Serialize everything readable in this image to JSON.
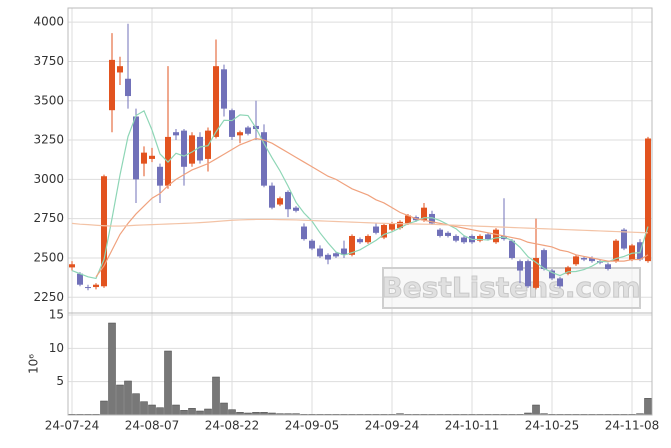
{
  "chart_data": {
    "type": "candlestick",
    "categories": [
      "24-07-24",
      null,
      null,
      null,
      null,
      null,
      null,
      null,
      null,
      null,
      "24-08-07",
      null,
      null,
      null,
      null,
      null,
      null,
      null,
      null,
      null,
      "24-08-22",
      null,
      null,
      null,
      null,
      null,
      null,
      null,
      null,
      null,
      "24-09-05",
      null,
      null,
      null,
      null,
      null,
      null,
      null,
      null,
      null,
      "24-09-24",
      null,
      null,
      null,
      null,
      null,
      null,
      null,
      null,
      null,
      "24-10-11",
      null,
      null,
      null,
      null,
      null,
      null,
      null,
      null,
      null,
      "24-10-25",
      null,
      null,
      null,
      null,
      null,
      null,
      null,
      null,
      null,
      "24-11-08",
      null,
      null
    ],
    "open": [
      2440,
      2400,
      2315,
      2315,
      2320,
      3440,
      3680,
      3640,
      3400,
      3100,
      3130,
      3080,
      2960,
      3300,
      3310,
      3100,
      3270,
      3130,
      3270,
      3700,
      3440,
      3280,
      3330,
      3340,
      3300,
      2960,
      2840,
      2920,
      2820,
      2700,
      2610,
      2560,
      2520,
      2530,
      2560,
      2520,
      2620,
      2600,
      2700,
      2630,
      2680,
      2690,
      2720,
      2760,
      2740,
      2780,
      2680,
      2660,
      2640,
      2630,
      2640,
      2610,
      2650,
      2600,
      2640,
      2610,
      2480,
      2480,
      2310,
      2550,
      2420,
      2370,
      2400,
      2460,
      2500,
      2500,
      2480,
      2460,
      2480,
      2680,
      2490,
      2600,
      2480
    ],
    "high": [
      2480,
      2410,
      2330,
      2340,
      3030,
      3930,
      3780,
      3990,
      3450,
      3210,
      3200,
      3100,
      3720,
      3320,
      3320,
      3300,
      3300,
      3330,
      3890,
      3730,
      3450,
      3310,
      3340,
      3500,
      3350,
      2980,
      2890,
      2930,
      2830,
      2720,
      2620,
      2580,
      2530,
      2540,
      2610,
      2650,
      2630,
      2650,
      2720,
      2720,
      2730,
      2740,
      2780,
      2770,
      2850,
      2800,
      2690,
      2670,
      2650,
      2640,
      2650,
      2650,
      2660,
      2690,
      2880,
      2620,
      2490,
      2490,
      2750,
      2560,
      2430,
      2380,
      2450,
      2520,
      2510,
      2510,
      2490,
      2470,
      2620,
      2690,
      2590,
      2620,
      3270
    ],
    "low": [
      2420,
      2320,
      2295,
      2300,
      2310,
      3300,
      3600,
      3450,
      2850,
      3020,
      3110,
      2850,
      2940,
      3250,
      2960,
      3080,
      3100,
      3050,
      3260,
      3400,
      3250,
      3230,
      3280,
      3250,
      2950,
      2810,
      2830,
      2760,
      2790,
      2610,
      2550,
      2500,
      2460,
      2500,
      2500,
      2510,
      2590,
      2590,
      2650,
      2620,
      2670,
      2680,
      2710,
      2730,
      2730,
      2710,
      2630,
      2630,
      2600,
      2590,
      2590,
      2600,
      2610,
      2590,
      2610,
      2490,
      2340,
      2310,
      2300,
      2420,
      2360,
      2310,
      2390,
      2450,
      2480,
      2470,
      2460,
      2420,
      2470,
      2550,
      2480,
      2480,
      2470
    ],
    "close": [
      2460,
      2330,
      2310,
      2330,
      3020,
      3760,
      3720,
      3530,
      3000,
      3170,
      3150,
      2960,
      3270,
      3280,
      3080,
      3280,
      3120,
      3310,
      3720,
      3450,
      3270,
      3300,
      3290,
      3320,
      2960,
      2820,
      2880,
      2810,
      2800,
      2620,
      2560,
      2510,
      2490,
      2510,
      2520,
      2640,
      2600,
      2640,
      2660,
      2710,
      2720,
      2730,
      2770,
      2740,
      2820,
      2720,
      2640,
      2640,
      2610,
      2600,
      2600,
      2640,
      2620,
      2680,
      2620,
      2500,
      2420,
      2320,
      2500,
      2430,
      2370,
      2320,
      2440,
      2510,
      2490,
      2480,
      2470,
      2430,
      2610,
      2560,
      2580,
      2490,
      3260
    ],
    "up_color": "#e2531f",
    "down_color": "#7171b9",
    "ylim": [
      2150,
      4090
    ],
    "yticks": [
      2250,
      2500,
      2750,
      3000,
      3250,
      3500,
      3750,
      4000
    ],
    "grid": true,
    "series": [
      {
        "color": "#8ed6b6",
        "values": [
          2420,
          2400,
          2380,
          2370,
          2490,
          2750,
          3028,
          3272,
          3406,
          3436,
          3314,
          3162,
          3110,
          3166,
          3148,
          3174,
          3206,
          3214,
          3302,
          3376,
          3374,
          3410,
          3406,
          3326,
          3228,
          3138,
          3054,
          2958,
          2854,
          2786,
          2734,
          2660,
          2596,
          2538,
          2518,
          2534,
          2552,
          2582,
          2612,
          2650,
          2666,
          2692,
          2718,
          2734,
          2756,
          2756,
          2738,
          2712,
          2686,
          2642,
          2618,
          2618,
          2614,
          2628,
          2632,
          2612,
          2568,
          2508,
          2472,
          2434,
          2408,
          2388,
          2412,
          2414,
          2426,
          2448,
          2478,
          2476,
          2496,
          2510,
          2530,
          2534,
          2700
        ]
      },
      {
        "color": "#f0a27e",
        "values": [
          null,
          null,
          null,
          2380,
          2450,
          2550,
          2650,
          2720,
          2780,
          2830,
          2880,
          2910,
          2960,
          3000,
          3030,
          3060,
          3080,
          3100,
          3130,
          3160,
          3190,
          3220,
          3240,
          3260,
          3250,
          3230,
          3200,
          3170,
          3140,
          3110,
          3080,
          3050,
          3020,
          3000,
          2970,
          2940,
          2920,
          2900,
          2870,
          2850,
          2820,
          2790,
          2770,
          2750,
          2740,
          2730,
          2720,
          2710,
          2700,
          2690,
          2680,
          2670,
          2660,
          2650,
          2640,
          2630,
          2620,
          2600,
          2590,
          2580,
          2570,
          2550,
          2540,
          2520,
          2510,
          2500,
          2490,
          2480,
          2480,
          2480,
          2490,
          2490,
          2520
        ]
      },
      {
        "color": "#f3c3a6",
        "values": [
          2720,
          2715,
          2712,
          2708,
          2705,
          2703,
          2703,
          2705,
          2708,
          2710,
          2712,
          2714,
          2716,
          2718,
          2720,
          2722,
          2725,
          2728,
          2732,
          2736,
          2740,
          2742,
          2744,
          2745,
          2745,
          2745,
          2744,
          2743,
          2742,
          2740,
          2738,
          2736,
          2734,
          2732,
          2730,
          2728,
          2726,
          2724,
          2722,
          2720,
          2719,
          2718,
          2717,
          2716,
          2715,
          2714,
          2712,
          2710,
          2708,
          2706,
          2704,
          2702,
          2700,
          2698,
          2696,
          2694,
          2692,
          2690,
          2688,
          2686,
          2684,
          2682,
          2680,
          2678,
          2676,
          2674,
          2672,
          2670,
          2668,
          2666,
          2664,
          2662,
          2660
        ]
      }
    ],
    "volume": {
      "color": "#787878",
      "label": "10⁶",
      "ylim": [
        0,
        15.3
      ],
      "yticks": [
        5,
        10,
        15
      ],
      "values": [
        0.1,
        0.1,
        0.1,
        0.1,
        2.1,
        13.8,
        4.5,
        5.1,
        3.2,
        2.0,
        1.5,
        1.1,
        9.6,
        1.5,
        0.7,
        1.0,
        0.6,
        0.9,
        5.7,
        1.8,
        0.8,
        0.4,
        0.3,
        0.4,
        0.4,
        0.3,
        0.2,
        0.2,
        0.2,
        0.1,
        0.1,
        0.1,
        0.1,
        0.1,
        0.1,
        0.1,
        0.1,
        0.1,
        0.1,
        0.1,
        0.1,
        0.2,
        0.1,
        0.1,
        0.1,
        0.1,
        0.1,
        0.1,
        0.1,
        0.1,
        0.1,
        0.1,
        0.1,
        0.1,
        0.1,
        0.1,
        0.1,
        0.3,
        1.5,
        0.2,
        0.1,
        0.1,
        0.1,
        0.1,
        0.1,
        0.1,
        0.1,
        0.1,
        0.1,
        0.1,
        0.1,
        0.2,
        2.5
      ]
    },
    "watermark": "BestListens.com"
  }
}
